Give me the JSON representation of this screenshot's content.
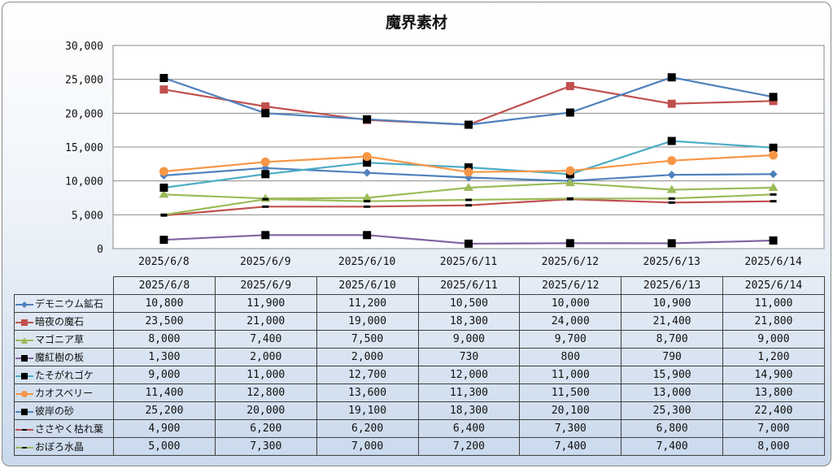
{
  "chart_data": {
    "type": "line",
    "title": "魔界素材",
    "xlabel": "",
    "ylabel": "",
    "ylim": [
      0,
      30000
    ],
    "y_ticks": [
      "0",
      "5,000",
      "10,000",
      "15,000",
      "20,000",
      "25,000",
      "30,000"
    ],
    "grid": true,
    "legend": "data-table-left",
    "categories": [
      "2025/6/8",
      "2025/6/9",
      "2025/6/10",
      "2025/6/11",
      "2025/6/12",
      "2025/6/13",
      "2025/6/14"
    ],
    "series": [
      {
        "name": "デモニウム鉱石",
        "color": "#4f81bd",
        "marker": "diamond",
        "values": [
          10800,
          11900,
          11200,
          10500,
          10000,
          10900,
          11000
        ],
        "labels": [
          "10,800",
          "11,900",
          "11,200",
          "10,500",
          "10,000",
          "10,900",
          "11,000"
        ]
      },
      {
        "name": "暗夜の魔石",
        "color": "#c0504d",
        "marker": "square",
        "values": [
          23500,
          21000,
          19000,
          18300,
          24000,
          21400,
          21800
        ],
        "labels": [
          "23,500",
          "21,000",
          "19,000",
          "18,300",
          "24,000",
          "21,400",
          "21,800"
        ]
      },
      {
        "name": "マゴニア草",
        "color": "#9bbb59",
        "marker": "triangle",
        "values": [
          8000,
          7400,
          7500,
          9000,
          9700,
          8700,
          9000
        ],
        "labels": [
          "8,000",
          "7,400",
          "7,500",
          "9,000",
          "9,700",
          "8,700",
          "9,000"
        ]
      },
      {
        "name": "魔紅樹の板",
        "color": "#8064a2",
        "marker": "square-black",
        "values": [
          1300,
          2000,
          2000,
          730,
          800,
          790,
          1200
        ],
        "labels": [
          "1,300",
          "2,000",
          "2,000",
          "730",
          "800",
          "790",
          "1,200"
        ]
      },
      {
        "name": "たそがれゴケ",
        "color": "#4bacc6",
        "marker": "square-black",
        "values": [
          9000,
          11000,
          12700,
          12000,
          11000,
          15900,
          14900
        ],
        "labels": [
          "9,000",
          "11,000",
          "12,700",
          "12,000",
          "11,000",
          "15,900",
          "14,900"
        ]
      },
      {
        "name": "カオスベリー",
        "color": "#f79646",
        "marker": "circle",
        "values": [
          11400,
          12800,
          13600,
          11300,
          11500,
          13000,
          13800
        ],
        "labels": [
          "11,400",
          "12,800",
          "13,600",
          "11,300",
          "11,500",
          "13,000",
          "13,800"
        ]
      },
      {
        "name": "彼岸の砂",
        "color": "#4f81bd",
        "marker": "square-black",
        "values": [
          25200,
          20000,
          19100,
          18300,
          20100,
          25300,
          22400
        ],
        "labels": [
          "25,200",
          "20,000",
          "19,100",
          "18,300",
          "20,100",
          "25,300",
          "22,400"
        ]
      },
      {
        "name": "ささやく枯れ葉",
        "color": "#c0504d",
        "marker": "dash",
        "values": [
          4900,
          6200,
          6200,
          6400,
          7300,
          6800,
          7000
        ],
        "labels": [
          "4,900",
          "6,200",
          "6,200",
          "6,400",
          "7,300",
          "6,800",
          "7,000"
        ]
      },
      {
        "name": "おぼろ水晶",
        "color": "#9bbb59",
        "marker": "dash",
        "values": [
          5000,
          7300,
          7000,
          7200,
          7400,
          7400,
          8000
        ],
        "labels": [
          "5,000",
          "7,300",
          "7,000",
          "7,200",
          "7,400",
          "7,400",
          "8,000"
        ]
      }
    ]
  }
}
